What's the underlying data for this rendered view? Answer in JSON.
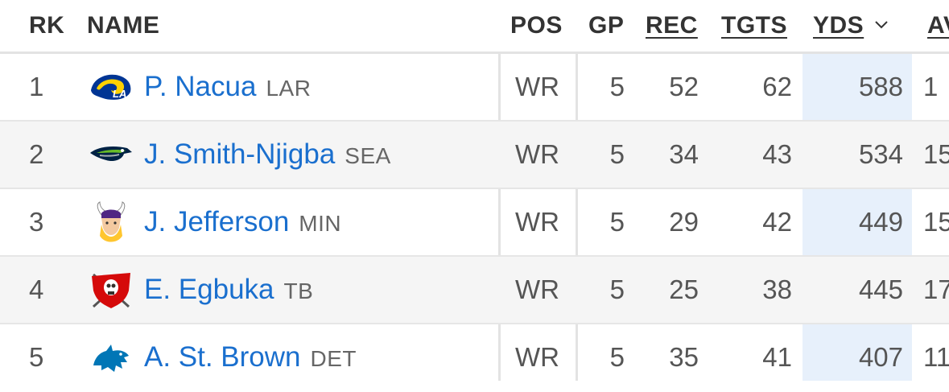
{
  "header": {
    "rk": "RK",
    "name": "NAME",
    "pos": "POS",
    "gp": "GP",
    "rec": "REC",
    "tgts": "TGTS",
    "yds": "YDS",
    "avg_partial": "AV"
  },
  "sort": {
    "column": "YDS",
    "direction": "desc",
    "indicator_icon": "chevron-down-icon"
  },
  "rows": [
    {
      "rk": "1",
      "name": "P. Nacua",
      "team": "LAR",
      "pos": "WR",
      "gp": "5",
      "rec": "52",
      "tgts": "62",
      "yds": "588",
      "avg_partial": "1",
      "logo_icon": "rams-logo-icon"
    },
    {
      "rk": "2",
      "name": "J. Smith-Njigba",
      "team": "SEA",
      "pos": "WR",
      "gp": "5",
      "rec": "34",
      "tgts": "43",
      "yds": "534",
      "avg_partial": "15",
      "logo_icon": "seahawks-logo-icon"
    },
    {
      "rk": "3",
      "name": "J. Jefferson",
      "team": "MIN",
      "pos": "WR",
      "gp": "5",
      "rec": "29",
      "tgts": "42",
      "yds": "449",
      "avg_partial": "15",
      "logo_icon": "vikings-logo-icon"
    },
    {
      "rk": "4",
      "name": "E. Egbuka",
      "team": "TB",
      "pos": "WR",
      "gp": "5",
      "rec": "25",
      "tgts": "38",
      "yds": "445",
      "avg_partial": "17",
      "logo_icon": "buccaneers-logo-icon"
    },
    {
      "rk": "5",
      "name": "A. St. Brown",
      "team": "DET",
      "pos": "WR",
      "gp": "5",
      "rec": "35",
      "tgts": "41",
      "yds": "407",
      "avg_partial": "11",
      "logo_icon": "lions-logo-icon"
    }
  ],
  "colors": {
    "link": "#1a6fce",
    "sorted_column_bg": "#e7f0fb",
    "alt_row_bg": "#f5f5f5"
  }
}
